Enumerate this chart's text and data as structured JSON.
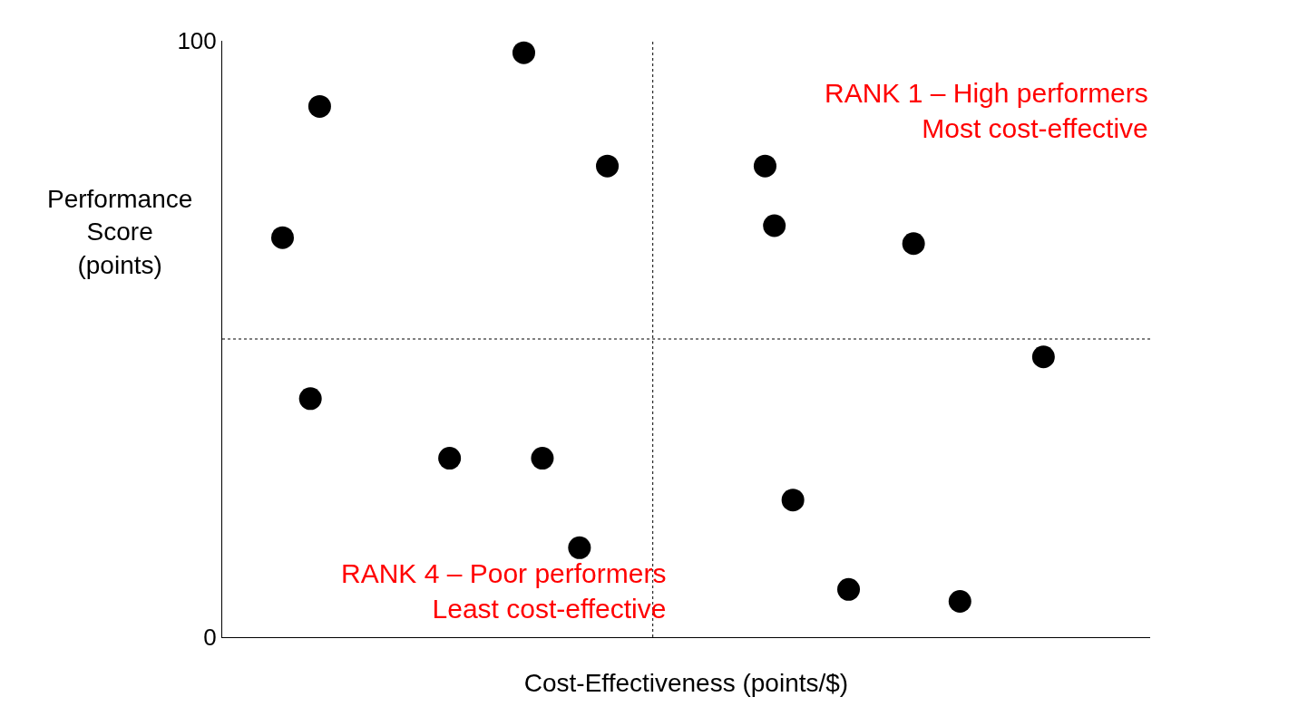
{
  "chart_data": {
    "type": "scatter",
    "xlabel": "Cost-Effectiveness (points/$)",
    "ylabel": "Performance\nScore\n(points)",
    "categories": [
      null,
      null,
      null,
      null,
      null,
      null,
      null,
      null,
      null,
      null,
      null,
      null,
      null,
      null,
      null,
      null,
      null,
      null,
      null,
      null,
      null,
      null,
      null,
      null,
      null,
      null,
      null,
      null,
      null,
      null,
      null,
      null,
      null,
      null,
      null,
      null,
      null,
      null,
      null,
      null,
      null,
      null,
      null,
      null,
      null,
      null,
      null,
      null,
      null,
      null,
      null,
      null,
      null,
      null,
      null,
      null,
      null,
      null,
      null,
      null,
      null,
      null,
      null,
      null,
      null,
      null,
      null,
      null,
      null,
      null,
      null,
      null,
      null,
      null,
      null,
      null,
      null,
      null,
      null,
      null,
      null,
      null,
      null,
      null,
      null,
      null,
      null,
      null,
      null,
      null,
      null,
      null,
      null,
      null,
      null,
      null,
      null,
      null,
      null,
      null
    ],
    "values": [
      null,
      null,
      null,
      null,
      null,
      null,
      67,
      null,
      null,
      40,
      89,
      null,
      null,
      null,
      null,
      null,
      null,
      null,
      null,
      null,
      null,
      null,
      null,
      null,
      30,
      null,
      null,
      null,
      null,
      null,
      null,
      null,
      98,
      null,
      30,
      null,
      null,
      null,
      15,
      null,
      null,
      79,
      null,
      null,
      null,
      null,
      null,
      null,
      null,
      null,
      null,
      null,
      null,
      null,
      null,
      null,
      null,
      null,
      79,
      69,
      null,
      23,
      null,
      null,
      null,
      null,
      null,
      8,
      null,
      null,
      null,
      null,
      null,
      null,
      66,
      null,
      null,
      null,
      null,
      6,
      null,
      null,
      null,
      null,
      null,
      null,
      null,
      null,
      47,
      null,
      null,
      null,
      null,
      null,
      null,
      null,
      null,
      null,
      null,
      null
    ],
    "color": "#000000",
    "marker": "circle",
    "ylim": [
      0,
      100
    ],
    "yticks": [
      0,
      100
    ],
    "tick_labels": "y",
    "ref_lines": [
      {
        "axis": "y",
        "value": 50,
        "color": "#000000",
        "line_style": "dotted"
      }
    ],
    "annotations": [
      "RANK 1 – High performers\nMost cost-effective",
      "RANK 4 – Poor performers\nLeast cost-effective"
    ]
  }
}
